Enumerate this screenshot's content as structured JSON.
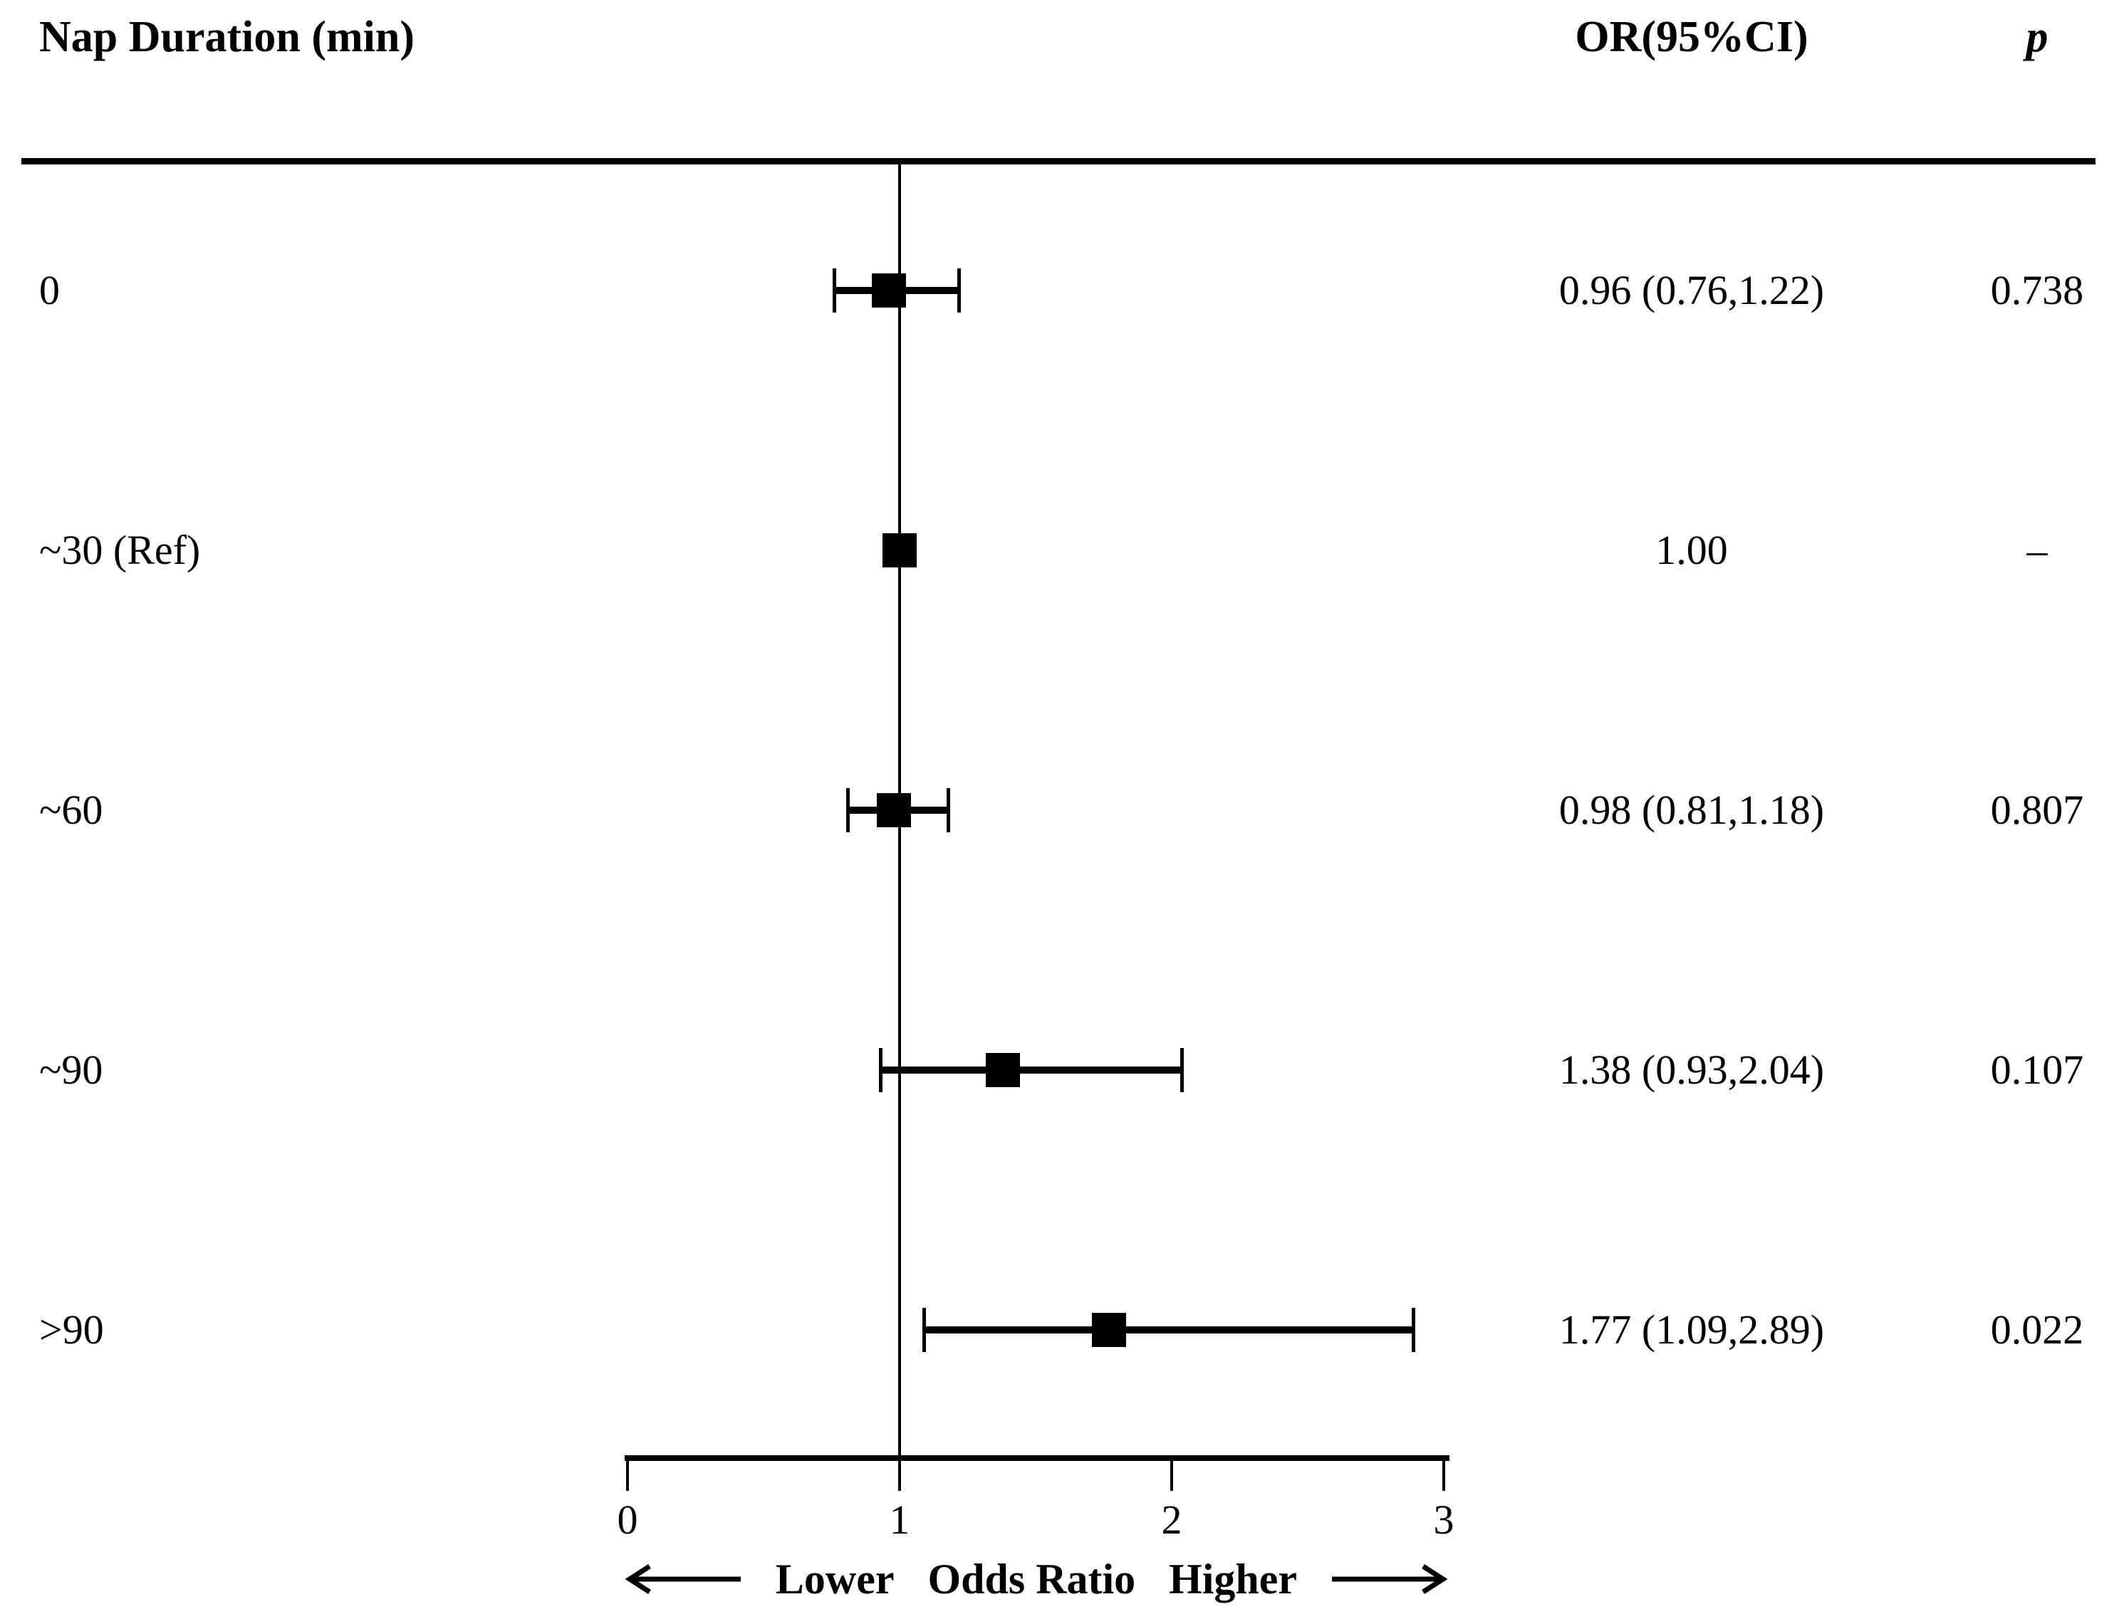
{
  "header": {
    "row_column_label": "Nap Duration (min)",
    "or_column_label": "OR(95%CI)",
    "p_column_label": "p"
  },
  "chart_data": {
    "type": "scatter",
    "variant": "forest-plot",
    "title": "",
    "xlabel": "Odds Ratio",
    "arrow_lower_label": "Lower",
    "arrow_higher_label": "Higher",
    "xlim": [
      0,
      3
    ],
    "x_ticks": [
      0,
      1,
      2,
      3
    ],
    "reference_line_x": 1,
    "grid": false,
    "marker_color": "#000000",
    "rows": [
      {
        "label": "0",
        "or": 0.96,
        "ci_low": 0.76,
        "ci_high": 1.22,
        "or_text": "0.96 (0.76,1.22)",
        "p_text": "0.738"
      },
      {
        "label": "~30 (Ref)",
        "or": 1.0,
        "ci_low": null,
        "ci_high": null,
        "or_text": "1.00",
        "p_text": "–"
      },
      {
        "label": "~60",
        "or": 0.98,
        "ci_low": 0.81,
        "ci_high": 1.18,
        "or_text": "0.98 (0.81,1.18)",
        "p_text": "0.807"
      },
      {
        "label": "~90",
        "or": 1.38,
        "ci_low": 0.93,
        "ci_high": 2.04,
        "or_text": "1.38 (0.93,2.04)",
        "p_text": "0.107"
      },
      {
        "label": ">90",
        "or": 1.77,
        "ci_low": 1.09,
        "ci_high": 2.89,
        "or_text": "1.77 (1.09,2.89)",
        "p_text": "0.022"
      }
    ]
  }
}
